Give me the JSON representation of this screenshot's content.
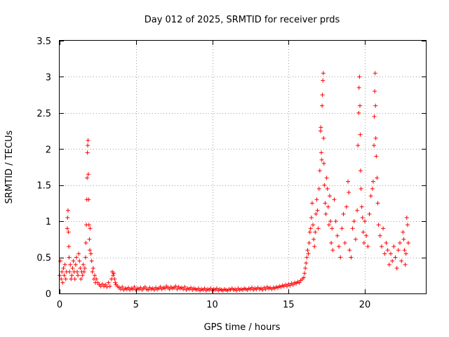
{
  "colors": {
    "series": "#ff0000",
    "axis": "#000000",
    "grid": "#a0a0a0",
    "background": "#ffffff"
  },
  "chart_data": {
    "type": "scatter",
    "title": "Day 012 of 2025, SRMTID for receiver prds",
    "xlabel": "GPS time / hours",
    "ylabel": "SRMTID / TECUs",
    "xlim": [
      0,
      24
    ],
    "ylim": [
      0,
      3.5
    ],
    "grid": true,
    "marker": "plus",
    "xticks": [
      0,
      5,
      10,
      15,
      20
    ],
    "xtick_labels": [
      "0",
      "5",
      "10",
      "15",
      "20"
    ],
    "yticks": [
      0,
      0.5,
      1,
      1.5,
      2,
      2.5,
      3,
      3.5
    ],
    "ytick_labels": [
      "0",
      "0.5",
      "1",
      "1.5",
      "2",
      "2.5",
      "3",
      "3.5"
    ],
    "series": [
      {
        "name": "SRMTID",
        "color": "#ff0000",
        "points": [
          [
            0.0,
            0.25
          ],
          [
            0.05,
            0.45
          ],
          [
            0.1,
            0.2
          ],
          [
            0.15,
            0.3
          ],
          [
            0.2,
            0.15
          ],
          [
            0.25,
            0.35
          ],
          [
            0.3,
            0.25
          ],
          [
            0.35,
            0.4
          ],
          [
            0.4,
            0.2
          ],
          [
            0.45,
            0.3
          ],
          [
            0.5,
            0.9
          ],
          [
            0.52,
            1.05
          ],
          [
            0.55,
            1.15
          ],
          [
            0.58,
            0.85
          ],
          [
            0.6,
            0.65
          ],
          [
            0.62,
            0.5
          ],
          [
            0.65,
            0.3
          ],
          [
            0.7,
            0.4
          ],
          [
            0.75,
            0.2
          ],
          [
            0.8,
            0.25
          ],
          [
            0.85,
            0.35
          ],
          [
            0.9,
            0.45
          ],
          [
            0.95,
            0.3
          ],
          [
            1.0,
            0.2
          ],
          [
            1.05,
            0.4
          ],
          [
            1.1,
            0.5
          ],
          [
            1.15,
            0.3
          ],
          [
            1.2,
            0.25
          ],
          [
            1.25,
            0.55
          ],
          [
            1.3,
            0.45
          ],
          [
            1.35,
            0.35
          ],
          [
            1.4,
            0.2
          ],
          [
            1.45,
            0.3
          ],
          [
            1.5,
            0.25
          ],
          [
            1.55,
            0.4
          ],
          [
            1.6,
            0.3
          ],
          [
            1.65,
            0.35
          ],
          [
            1.7,
            0.5
          ],
          [
            1.72,
            0.7
          ],
          [
            1.75,
            0.95
          ],
          [
            1.78,
            1.3
          ],
          [
            1.8,
            1.6
          ],
          [
            1.82,
            1.95
          ],
          [
            1.84,
            2.05
          ],
          [
            1.86,
            2.12
          ],
          [
            1.88,
            1.65
          ],
          [
            1.9,
            1.3
          ],
          [
            1.92,
            0.95
          ],
          [
            1.95,
            0.75
          ],
          [
            1.98,
            0.6
          ],
          [
            2.0,
            0.9
          ],
          [
            2.05,
            0.55
          ],
          [
            2.1,
            0.45
          ],
          [
            2.15,
            0.3
          ],
          [
            2.2,
            0.35
          ],
          [
            2.25,
            0.2
          ],
          [
            2.3,
            0.25
          ],
          [
            2.35,
            0.15
          ],
          [
            2.4,
            0.2
          ],
          [
            2.5,
            0.15
          ],
          [
            2.6,
            0.12
          ],
          [
            2.7,
            0.1
          ],
          [
            2.8,
            0.13
          ],
          [
            2.9,
            0.1
          ],
          [
            3.0,
            0.12
          ],
          [
            3.1,
            0.09
          ],
          [
            3.2,
            0.15
          ],
          [
            3.3,
            0.1
          ],
          [
            3.4,
            0.2
          ],
          [
            3.45,
            0.3
          ],
          [
            3.5,
            0.25
          ],
          [
            3.55,
            0.28
          ],
          [
            3.6,
            0.2
          ],
          [
            3.65,
            0.15
          ],
          [
            3.7,
            0.12
          ],
          [
            3.8,
            0.1
          ],
          [
            3.9,
            0.08
          ],
          [
            4.0,
            0.06
          ],
          [
            4.1,
            0.09
          ],
          [
            4.2,
            0.05
          ],
          [
            4.3,
            0.07
          ],
          [
            4.4,
            0.06
          ],
          [
            4.5,
            0.08
          ],
          [
            4.6,
            0.05
          ],
          [
            4.7,
            0.07
          ],
          [
            4.8,
            0.06
          ],
          [
            4.9,
            0.09
          ],
          [
            5.0,
            0.05
          ],
          [
            5.1,
            0.07
          ],
          [
            5.2,
            0.06
          ],
          [
            5.3,
            0.08
          ],
          [
            5.4,
            0.05
          ],
          [
            5.5,
            0.07
          ],
          [
            5.6,
            0.09
          ],
          [
            5.7,
            0.06
          ],
          [
            5.8,
            0.05
          ],
          [
            5.9,
            0.08
          ],
          [
            6.0,
            0.06
          ],
          [
            6.1,
            0.07
          ],
          [
            6.2,
            0.05
          ],
          [
            6.3,
            0.08
          ],
          [
            6.4,
            0.06
          ],
          [
            6.5,
            0.07
          ],
          [
            6.6,
            0.09
          ],
          [
            6.7,
            0.06
          ],
          [
            6.8,
            0.08
          ],
          [
            6.9,
            0.07
          ],
          [
            7.0,
            0.1
          ],
          [
            7.1,
            0.08
          ],
          [
            7.2,
            0.06
          ],
          [
            7.3,
            0.09
          ],
          [
            7.4,
            0.07
          ],
          [
            7.5,
            0.08
          ],
          [
            7.6,
            0.1
          ],
          [
            7.7,
            0.06
          ],
          [
            7.8,
            0.09
          ],
          [
            7.9,
            0.07
          ],
          [
            8.0,
            0.08
          ],
          [
            8.1,
            0.06
          ],
          [
            8.2,
            0.09
          ],
          [
            8.3,
            0.05
          ],
          [
            8.4,
            0.07
          ],
          [
            8.5,
            0.06
          ],
          [
            8.6,
            0.08
          ],
          [
            8.7,
            0.05
          ],
          [
            8.8,
            0.07
          ],
          [
            8.9,
            0.06
          ],
          [
            9.0,
            0.05
          ],
          [
            9.1,
            0.07
          ],
          [
            9.2,
            0.04
          ],
          [
            9.3,
            0.06
          ],
          [
            9.4,
            0.05
          ],
          [
            9.5,
            0.07
          ],
          [
            9.6,
            0.04
          ],
          [
            9.7,
            0.06
          ],
          [
            9.8,
            0.05
          ],
          [
            9.9,
            0.07
          ],
          [
            10.0,
            0.04
          ],
          [
            10.1,
            0.06
          ],
          [
            10.2,
            0.05
          ],
          [
            10.3,
            0.07
          ],
          [
            10.4,
            0.04
          ],
          [
            10.5,
            0.06
          ],
          [
            10.6,
            0.05
          ],
          [
            10.7,
            0.04
          ],
          [
            10.8,
            0.06
          ],
          [
            10.9,
            0.05
          ],
          [
            11.0,
            0.04
          ],
          [
            11.1,
            0.06
          ],
          [
            11.2,
            0.05
          ],
          [
            11.3,
            0.07
          ],
          [
            11.4,
            0.05
          ],
          [
            11.5,
            0.06
          ],
          [
            11.6,
            0.04
          ],
          [
            11.7,
            0.07
          ],
          [
            11.8,
            0.05
          ],
          [
            11.9,
            0.06
          ],
          [
            12.0,
            0.05
          ],
          [
            12.1,
            0.07
          ],
          [
            12.2,
            0.06
          ],
          [
            12.3,
            0.05
          ],
          [
            12.4,
            0.07
          ],
          [
            12.5,
            0.06
          ],
          [
            12.6,
            0.08
          ],
          [
            12.7,
            0.05
          ],
          [
            12.8,
            0.07
          ],
          [
            12.9,
            0.06
          ],
          [
            13.0,
            0.08
          ],
          [
            13.1,
            0.06
          ],
          [
            13.2,
            0.07
          ],
          [
            13.3,
            0.05
          ],
          [
            13.4,
            0.08
          ],
          [
            13.5,
            0.06
          ],
          [
            13.6,
            0.09
          ],
          [
            13.7,
            0.07
          ],
          [
            13.8,
            0.08
          ],
          [
            13.9,
            0.06
          ],
          [
            14.0,
            0.08
          ],
          [
            14.1,
            0.07
          ],
          [
            14.2,
            0.09
          ],
          [
            14.3,
            0.08
          ],
          [
            14.4,
            0.1
          ],
          [
            14.5,
            0.09
          ],
          [
            14.6,
            0.11
          ],
          [
            14.7,
            0.1
          ],
          [
            14.8,
            0.12
          ],
          [
            14.9,
            0.1
          ],
          [
            15.0,
            0.13
          ],
          [
            15.1,
            0.11
          ],
          [
            15.2,
            0.14
          ],
          [
            15.3,
            0.12
          ],
          [
            15.4,
            0.15
          ],
          [
            15.5,
            0.14
          ],
          [
            15.6,
            0.16
          ],
          [
            15.7,
            0.15
          ],
          [
            15.8,
            0.18
          ],
          [
            15.9,
            0.2
          ],
          [
            16.0,
            0.22
          ],
          [
            16.05,
            0.28
          ],
          [
            16.1,
            0.35
          ],
          [
            16.15,
            0.42
          ],
          [
            16.2,
            0.5
          ],
          [
            16.25,
            0.6
          ],
          [
            16.3,
            0.55
          ],
          [
            16.35,
            0.7
          ],
          [
            16.4,
            0.85
          ],
          [
            16.45,
            0.9
          ],
          [
            16.5,
            1.05
          ],
          [
            16.55,
            1.25
          ],
          [
            16.6,
            0.95
          ],
          [
            16.65,
            0.75
          ],
          [
            16.7,
            0.65
          ],
          [
            16.75,
            0.85
          ],
          [
            16.8,
            1.1
          ],
          [
            16.85,
            1.3
          ],
          [
            16.9,
            1.15
          ],
          [
            16.95,
            0.9
          ],
          [
            17.0,
            1.45
          ],
          [
            17.05,
            1.7
          ],
          [
            17.1,
            2.25
          ],
          [
            17.12,
            2.3
          ],
          [
            17.15,
            1.95
          ],
          [
            17.18,
            1.85
          ],
          [
            17.2,
            2.6
          ],
          [
            17.22,
            2.75
          ],
          [
            17.25,
            2.95
          ],
          [
            17.28,
            3.05
          ],
          [
            17.3,
            2.15
          ],
          [
            17.32,
            1.8
          ],
          [
            17.35,
            1.5
          ],
          [
            17.4,
            1.25
          ],
          [
            17.45,
            1.1
          ],
          [
            17.5,
            1.6
          ],
          [
            17.55,
            1.45
          ],
          [
            17.6,
            1.2
          ],
          [
            17.65,
            0.95
          ],
          [
            17.7,
            1.35
          ],
          [
            17.75,
            1.0
          ],
          [
            17.8,
            0.7
          ],
          [
            17.85,
            0.9
          ],
          [
            17.9,
            0.6
          ],
          [
            18.0,
            1.3
          ],
          [
            18.1,
            1.0
          ],
          [
            18.2,
            0.8
          ],
          [
            18.3,
            0.65
          ],
          [
            18.4,
            0.5
          ],
          [
            18.5,
            0.9
          ],
          [
            18.6,
            1.1
          ],
          [
            18.7,
            0.7
          ],
          [
            18.8,
            1.2
          ],
          [
            18.9,
            1.55
          ],
          [
            18.95,
            1.4
          ],
          [
            19.0,
            0.6
          ],
          [
            19.1,
            0.5
          ],
          [
            19.2,
            0.9
          ],
          [
            19.3,
            1.0
          ],
          [
            19.4,
            0.75
          ],
          [
            19.5,
            1.15
          ],
          [
            19.55,
            2.05
          ],
          [
            19.6,
            2.5
          ],
          [
            19.62,
            2.85
          ],
          [
            19.65,
            3.0
          ],
          [
            19.68,
            2.6
          ],
          [
            19.7,
            2.2
          ],
          [
            19.72,
            1.7
          ],
          [
            19.75,
            1.45
          ],
          [
            19.8,
            1.2
          ],
          [
            19.85,
            1.05
          ],
          [
            19.9,
            0.85
          ],
          [
            19.95,
            0.7
          ],
          [
            20.0,
            1.0
          ],
          [
            20.1,
            0.8
          ],
          [
            20.2,
            0.65
          ],
          [
            20.3,
            1.1
          ],
          [
            20.4,
            1.35
          ],
          [
            20.5,
            1.45
          ],
          [
            20.55,
            1.55
          ],
          [
            20.6,
            2.05
          ],
          [
            20.62,
            2.45
          ],
          [
            20.65,
            2.8
          ],
          [
            20.68,
            3.05
          ],
          [
            20.7,
            2.6
          ],
          [
            20.72,
            2.15
          ],
          [
            20.75,
            1.9
          ],
          [
            20.8,
            1.6
          ],
          [
            20.85,
            1.25
          ],
          [
            20.9,
            0.95
          ],
          [
            21.0,
            0.8
          ],
          [
            21.1,
            0.65
          ],
          [
            21.2,
            0.9
          ],
          [
            21.3,
            0.55
          ],
          [
            21.4,
            0.7
          ],
          [
            21.5,
            0.6
          ],
          [
            21.6,
            0.4
          ],
          [
            21.7,
            0.55
          ],
          [
            21.8,
            0.45
          ],
          [
            21.9,
            0.65
          ],
          [
            22.0,
            0.5
          ],
          [
            22.1,
            0.35
          ],
          [
            22.2,
            0.6
          ],
          [
            22.3,
            0.7
          ],
          [
            22.4,
            0.45
          ],
          [
            22.5,
            0.85
          ],
          [
            22.55,
            0.75
          ],
          [
            22.6,
            0.6
          ],
          [
            22.65,
            0.4
          ],
          [
            22.7,
            0.55
          ],
          [
            22.75,
            1.05
          ],
          [
            22.8,
            0.95
          ],
          [
            22.85,
            0.7
          ]
        ]
      }
    ]
  }
}
